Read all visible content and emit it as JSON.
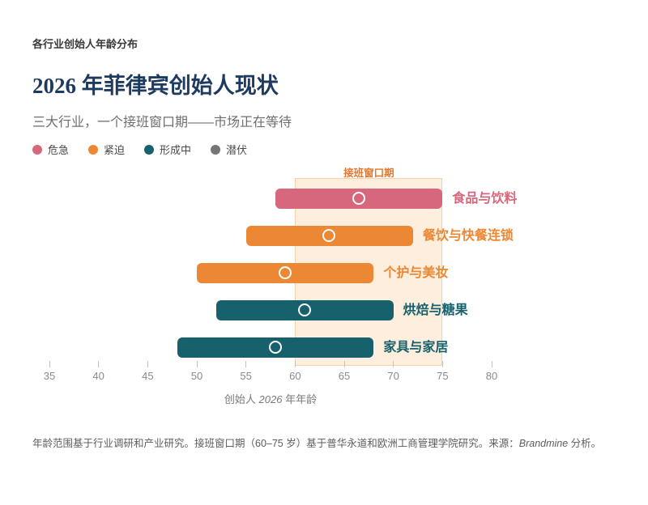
{
  "chart_data": {
    "type": "bar",
    "orientation": "horizontal",
    "eyebrow": "各行业创始人年龄分布",
    "title": "2026 年菲律宾创始人现状",
    "subtitle": "三大行业，一个接班窗口期——市场正在等待",
    "xlabel": "创始人 2026 年年龄",
    "xlabel_parts": {
      "prefix": "创始人 ",
      "year": "2026",
      "suffix": " 年年龄"
    },
    "x_axis": {
      "min": 35,
      "max": 80,
      "ticks": [
        35,
        40,
        45,
        50,
        55,
        60,
        65,
        70,
        75,
        80
      ]
    },
    "grid": false,
    "legend_position": "top-left",
    "legend": [
      {
        "label": "危急",
        "color": "#d6677c"
      },
      {
        "label": "紧迫",
        "color": "#ec8733"
      },
      {
        "label": "形成中",
        "color": "#17616d"
      },
      {
        "label": "潜伏",
        "color": "#757575"
      }
    ],
    "band": {
      "label": "接班窗口期",
      "from": 60,
      "to": 75,
      "fill": "#fdeedd",
      "border": "#f3d2ad",
      "label_color": "#e8772a"
    },
    "series": [
      {
        "label": "食品与饮料",
        "status": "危急",
        "start": 58,
        "end": 75,
        "median": 66.5,
        "color": "#d6677c"
      },
      {
        "label": "餐饮与快餐连锁",
        "status": "紧迫",
        "start": 55,
        "end": 72,
        "median": 63.5,
        "color": "#ec8733"
      },
      {
        "label": "个护与美妆",
        "status": "紧迫",
        "start": 50,
        "end": 68,
        "median": 59,
        "color": "#ec8733"
      },
      {
        "label": "烘焙与糖果",
        "status": "形成中",
        "start": 52,
        "end": 70,
        "median": 61,
        "color": "#17616d"
      },
      {
        "label": "家具与家居",
        "status": "形成中",
        "start": 48,
        "end": 68,
        "median": 58,
        "color": "#17616d"
      }
    ]
  },
  "footer": {
    "text_before": "年龄范围基于行业调研和产业研究。接班窗口期（60–75 岁）基于普华永道和欧洲工商管理学院研究。来源：",
    "brand": "Brandmine",
    "text_after": " 分析。"
  }
}
